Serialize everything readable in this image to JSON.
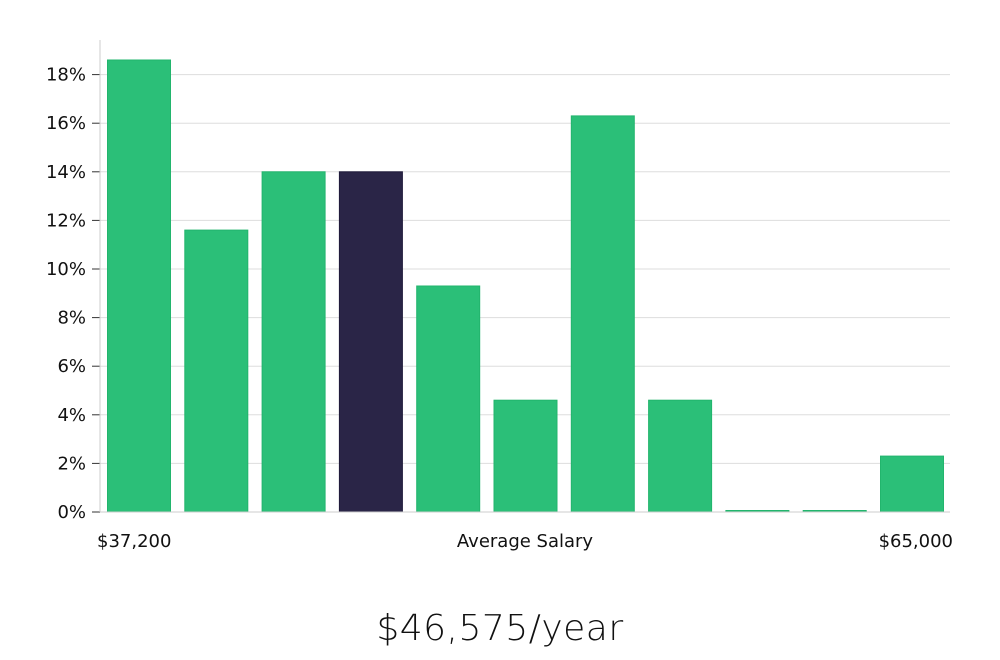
{
  "chart_data": {
    "type": "bar",
    "title": "",
    "xlabel": "Average Salary",
    "ylabel": "",
    "x_min_label": "$37,200",
    "x_max_label": "$65,000",
    "y_tick_labels": [
      "0%",
      "2%",
      "4%",
      "6%",
      "8%",
      "10%",
      "12%",
      "14%",
      "16%",
      "18%"
    ],
    "ylim": [
      0,
      19.5
    ],
    "values": [
      18.6,
      11.6,
      14.0,
      14.0,
      9.3,
      4.6,
      16.3,
      4.6,
      0,
      0,
      2.3
    ],
    "highlight_index": 3,
    "colors": {
      "bar": "#2bbf78",
      "bar_stroke": "#22b56d",
      "highlight": "#2a2547",
      "grid": "#dddddd",
      "axis": "#cccccc"
    }
  },
  "salary_display": "$46,575/year"
}
